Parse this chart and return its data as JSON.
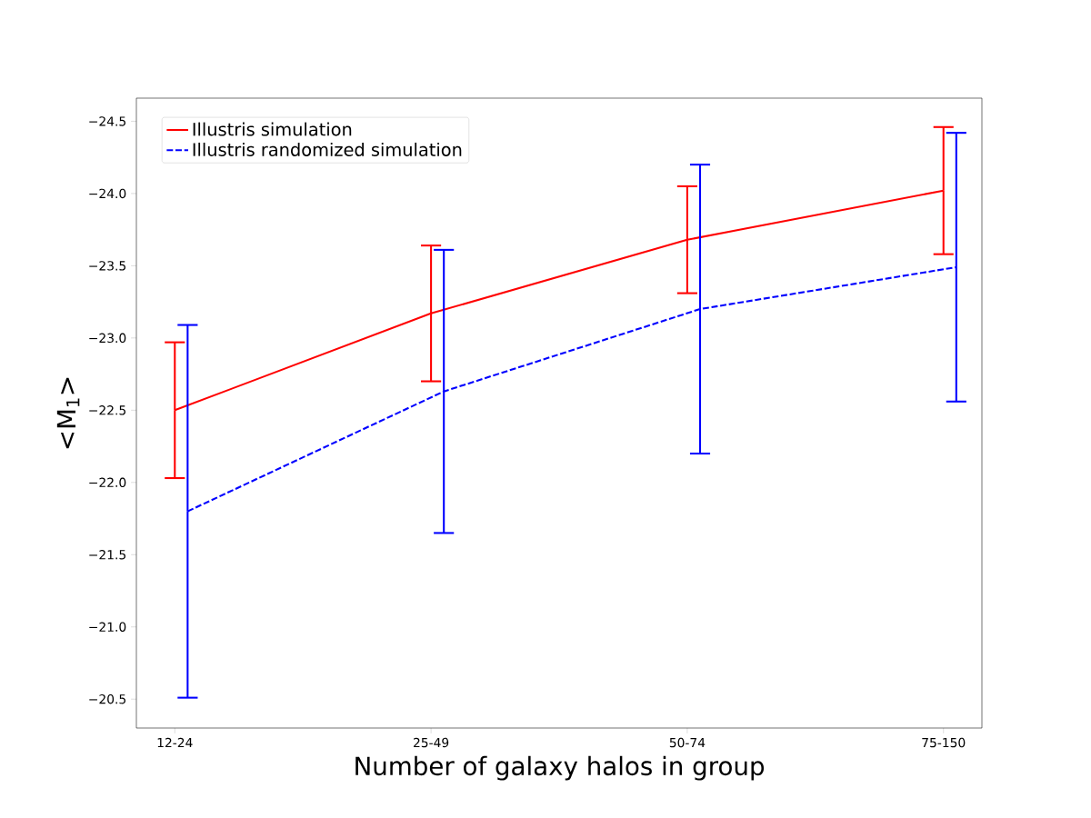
{
  "chart_data": {
    "type": "line",
    "xlabel": "Number of galaxy halos in group",
    "ylabel": "<M$_{1}$>",
    "categories": [
      "12-24",
      "25-49",
      "50-74",
      "75-150"
    ],
    "series": [
      {
        "name": "Illustris simulation",
        "color": "#ff0000",
        "line_style": "solid",
        "values": [
          -22.5,
          -23.17,
          -23.68,
          -24.02
        ],
        "errors": [
          0.47,
          0.47,
          0.37,
          0.44
        ]
      },
      {
        "name": "Illustris randomized simulation",
        "color": "#0000ff",
        "line_style": "dashed",
        "values": [
          -21.8,
          -22.63,
          -23.2,
          -23.49
        ],
        "errors": [
          1.29,
          0.98,
          1.0,
          0.93
        ]
      }
    ],
    "ylim": [
      -20.3,
      -24.66
    ],
    "yticks": [
      {
        "value": -24.5,
        "label": "−24.5"
      },
      {
        "value": -24.0,
        "label": "−24.0"
      },
      {
        "value": -23.5,
        "label": "−23.5"
      },
      {
        "value": -23.0,
        "label": "−23.0"
      },
      {
        "value": -22.5,
        "label": "−22.5"
      },
      {
        "value": -22.0,
        "label": "−22.0"
      },
      {
        "value": -21.5,
        "label": "−21.5"
      },
      {
        "value": -21.0,
        "label": "−21.0"
      },
      {
        "value": -20.5,
        "label": "−20.5"
      }
    ],
    "legend": "top left",
    "grid": false
  }
}
